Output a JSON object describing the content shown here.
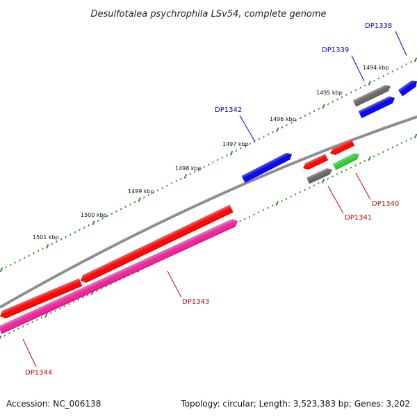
{
  "title": "Desulfotalea psychrophila LSv54, complete genome",
  "footer": {
    "accession": "Accession: NC_006138",
    "summary": "Topology: circular; Length: 3,523,383 bp; Genes: 3,202"
  },
  "colors": {
    "backbone": "#8a8a8a",
    "tick": "#2e8b2e",
    "forward_label": "#0000cc",
    "reverse_label": "#cc0000"
  },
  "ticks": [
    {
      "kbp": 1494,
      "label": "1494 kbp"
    },
    {
      "kbp": 1495,
      "label": "1495 kbp"
    },
    {
      "kbp": 1496,
      "label": "1496 kbp"
    },
    {
      "kbp": 1497,
      "label": "1497 kbp"
    },
    {
      "kbp": 1498,
      "label": "1498 kbp"
    },
    {
      "kbp": 1499,
      "label": "1499 kbp"
    },
    {
      "kbp": 1500,
      "label": "1500 kbp"
    },
    {
      "kbp": 1501,
      "label": "1501 kbp"
    }
  ],
  "genes": [
    {
      "id": "DP1338",
      "label": "DP1338",
      "color": "#0000ee"
    },
    {
      "id": "DP1339",
      "label": "DP1339",
      "color": "#0000ee"
    },
    {
      "id": "DP1342",
      "label": "DP1342",
      "color": "#0000ee"
    },
    {
      "id": "DP1340",
      "label": "DP1340",
      "color": "#ff0000"
    },
    {
      "id": "DP1341",
      "label": "DP1341",
      "color": "#ff0000"
    },
    {
      "id": "DP1343",
      "label": "DP1343",
      "color": "#ff0000"
    },
    {
      "id": "DP1344",
      "label": "DP1344",
      "color": "#ff0000"
    },
    {
      "id": "grey-a",
      "label": "",
      "color": "#666666"
    },
    {
      "id": "grey-b",
      "label": "",
      "color": "#666666"
    },
    {
      "id": "green",
      "label": "",
      "color": "#33cc33"
    },
    {
      "id": "pink",
      "label": "",
      "color": "#ee2299"
    }
  ]
}
